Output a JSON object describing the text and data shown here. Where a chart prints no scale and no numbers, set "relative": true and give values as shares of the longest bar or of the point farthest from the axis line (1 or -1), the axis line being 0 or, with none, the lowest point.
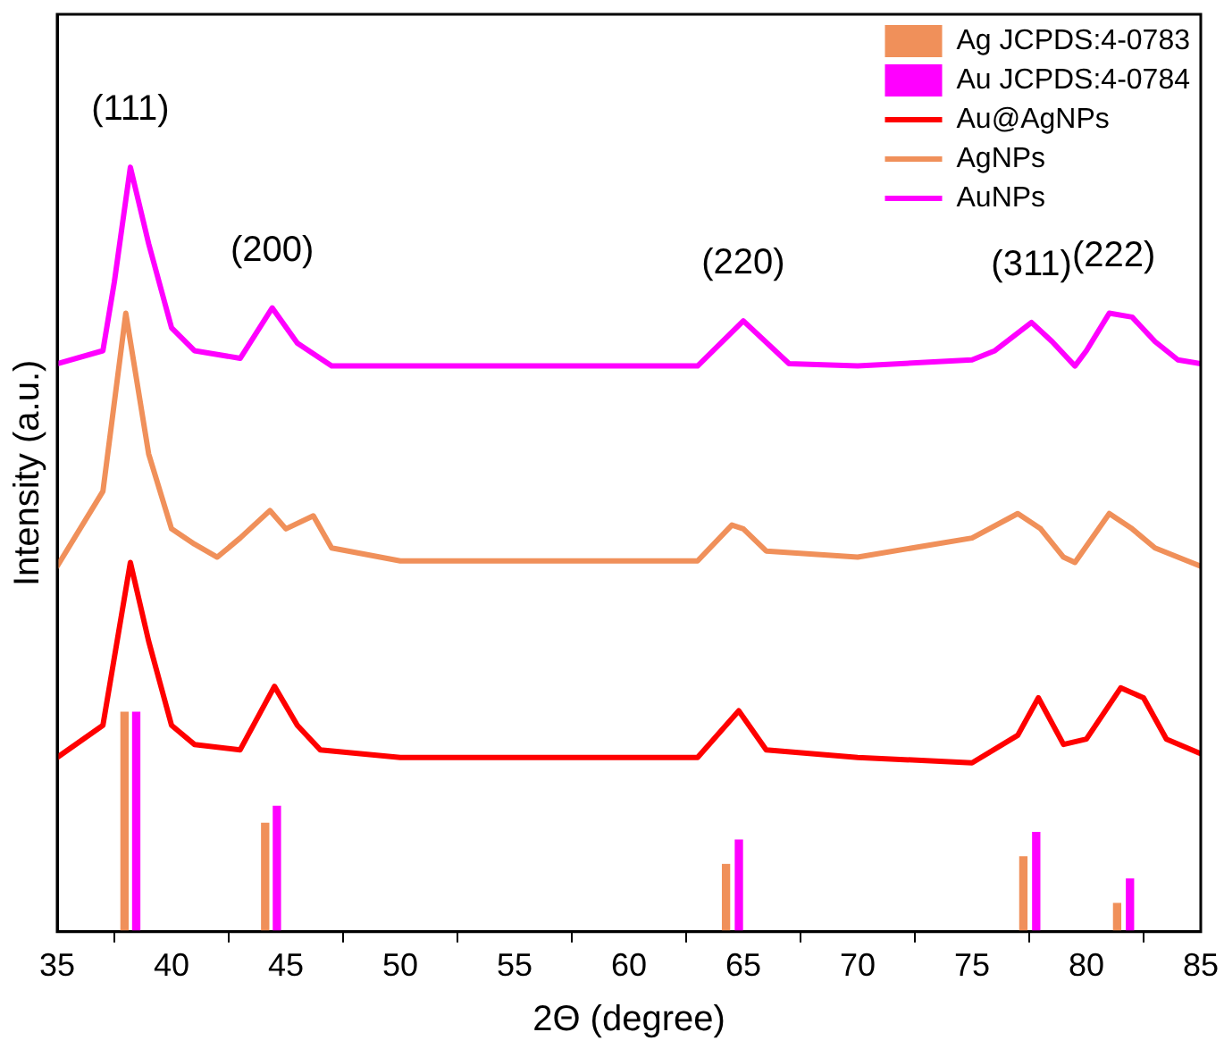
{
  "chart_data": {
    "type": "line",
    "relative": true,
    "xlabel": "2Θ (degree)",
    "ylabel": "Intensity (a.u.)",
    "xlim": [
      35,
      85
    ],
    "xticks": [
      35,
      40,
      45,
      50,
      55,
      60,
      65,
      70,
      75,
      80,
      85
    ],
    "legend": "top right",
    "grid": false,
    "marker": "none",
    "line_style": "solid",
    "annotations": [
      {
        "text": "(111)",
        "x": 38.2,
        "y": 1.0
      },
      {
        "text": "(200)",
        "x": 44.4,
        "y": 0.816
      },
      {
        "text": "(220)",
        "x": 65,
        "y": 0.799
      },
      {
        "text": "(311)",
        "x": 77.6,
        "y": 0.797
      },
      {
        "text": "(222)",
        "x": 81.2,
        "y": 0.809
      }
    ],
    "series": [
      {
        "name": "Ag JCPDS:4-0783",
        "type": "bar",
        "color": "#f0905a",
        "x": [
          38.1,
          44.25,
          64.4,
          77.4,
          81.5
        ],
        "values": [
          0.287,
          0.142,
          0.088,
          0.098,
          0.037
        ]
      },
      {
        "name": "Au JCPDS:4-0784",
        "type": "bar",
        "color": "#ff00ff",
        "x": [
          38.3,
          44.45,
          64.65,
          77.65,
          81.75
        ],
        "values": [
          0.287,
          0.164,
          0.12,
          0.13,
          0.069
        ]
      },
      {
        "name": "Au@AgNPs",
        "color": "#ff0000",
        "x": [
          35,
          37,
          38.2,
          39,
          40,
          41,
          43,
          44.5,
          45.5,
          46.5,
          50,
          55,
          60,
          63,
          64.8,
          66,
          70,
          75,
          77,
          77.9,
          79,
          80,
          81.5,
          82.5,
          83.5,
          85
        ],
        "values": [
          0.228,
          0.27,
          0.483,
          0.38,
          0.27,
          0.245,
          0.238,
          0.321,
          0.27,
          0.238,
          0.228,
          0.228,
          0.228,
          0.228,
          0.289,
          0.238,
          0.228,
          0.221,
          0.257,
          0.306,
          0.245,
          0.252,
          0.319,
          0.306,
          0.252,
          0.233
        ]
      },
      {
        "name": "AgNPs",
        "color": "#f0905a",
        "x": [
          35,
          37,
          38,
          39,
          40,
          41,
          42,
          43,
          44.3,
          45,
          46.2,
          47,
          50,
          55,
          60,
          63,
          64.5,
          65,
          66,
          70,
          75,
          77,
          78,
          79,
          79.5,
          81,
          82,
          83,
          85
        ],
        "values": [
          0.478,
          0.576,
          0.809,
          0.625,
          0.527,
          0.507,
          0.49,
          0.515,
          0.551,
          0.527,
          0.544,
          0.502,
          0.485,
          0.485,
          0.485,
          0.485,
          0.532,
          0.527,
          0.498,
          0.49,
          0.515,
          0.547,
          0.527,
          0.49,
          0.483,
          0.547,
          0.527,
          0.502,
          0.478
        ]
      },
      {
        "name": "AuNPs",
        "color": "#ff00ff",
        "x": [
          35,
          37,
          37.5,
          38.2,
          39,
          40,
          41,
          43,
          44.4,
          45.5,
          47,
          50,
          55,
          60,
          63,
          65,
          67,
          70,
          75,
          76,
          77.6,
          78.5,
          79.5,
          80,
          81,
          82,
          83,
          84,
          85
        ],
        "values": [
          0.743,
          0.76,
          0.85,
          1.0,
          0.9,
          0.79,
          0.76,
          0.75,
          0.816,
          0.77,
          0.74,
          0.74,
          0.74,
          0.74,
          0.74,
          0.799,
          0.743,
          0.74,
          0.748,
          0.76,
          0.797,
          0.772,
          0.74,
          0.76,
          0.809,
          0.804,
          0.772,
          0.748,
          0.743
        ]
      }
    ]
  }
}
